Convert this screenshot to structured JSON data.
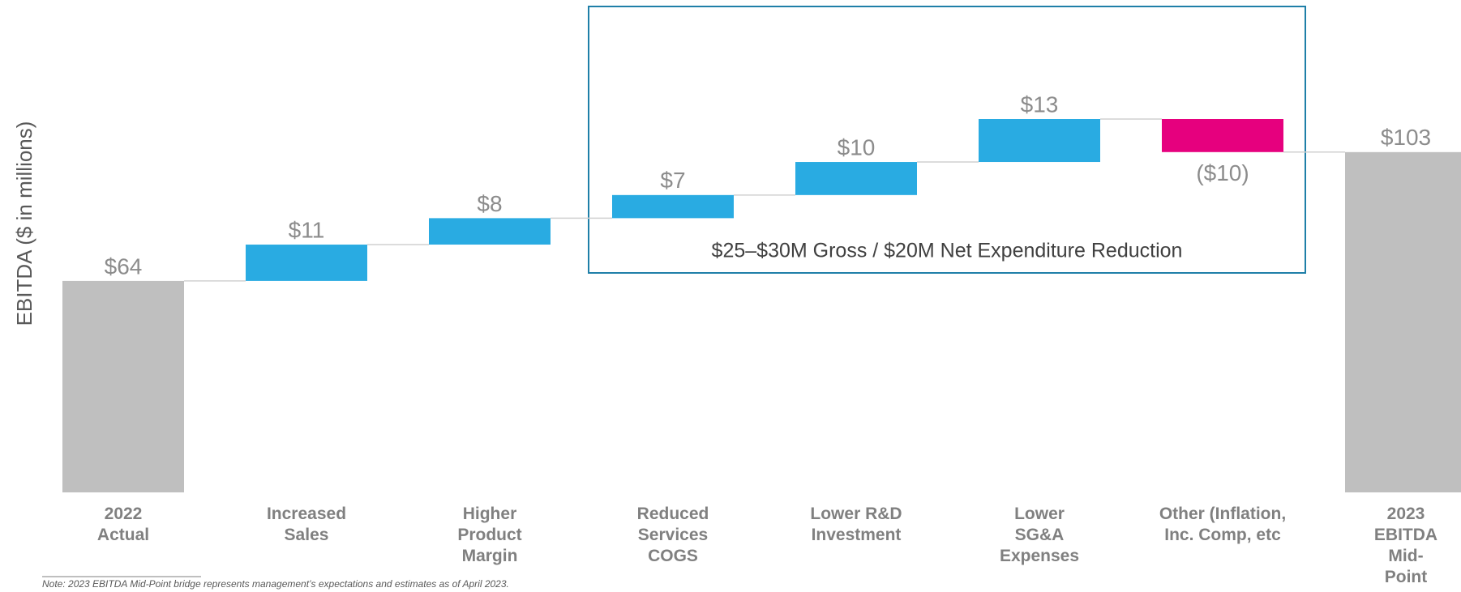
{
  "chart_data": {
    "type": "waterfall",
    "y_label": "EBITDA ($ in millions)",
    "categories": [
      "2022\nActual",
      "Increased\nSales",
      "Higher\nProduct\nMargin",
      "Reduced\nServices\nCOGS",
      "Lower R&D\nInvestment",
      "Lower\nSG&A\nExpenses",
      "Other (Inflation,\nInc. Comp, etc",
      "2023\nEBITDA\nMid-\nPoint"
    ],
    "values": [
      64,
      11,
      8,
      7,
      10,
      13,
      -10,
      103
    ],
    "value_labels": [
      "$64",
      "$11",
      "$8",
      "$7",
      "$10",
      "$13",
      "($10)",
      "$103"
    ],
    "measure": [
      "absolute",
      "relative",
      "relative",
      "relative",
      "relative",
      "relative",
      "relative",
      "total"
    ],
    "colors": [
      "#bfbfbf",
      "#29abe2",
      "#29abe2",
      "#29abe2",
      "#29abe2",
      "#29abe2",
      "#e6007e",
      "#bfbfbf"
    ],
    "annotation": "$25–$30M Gross / $20M Net Expenditure Reduction",
    "note": "Note: 2023 EBITDA Mid-Point bridge represents management’s expectations and estimates as of April 2023."
  }
}
